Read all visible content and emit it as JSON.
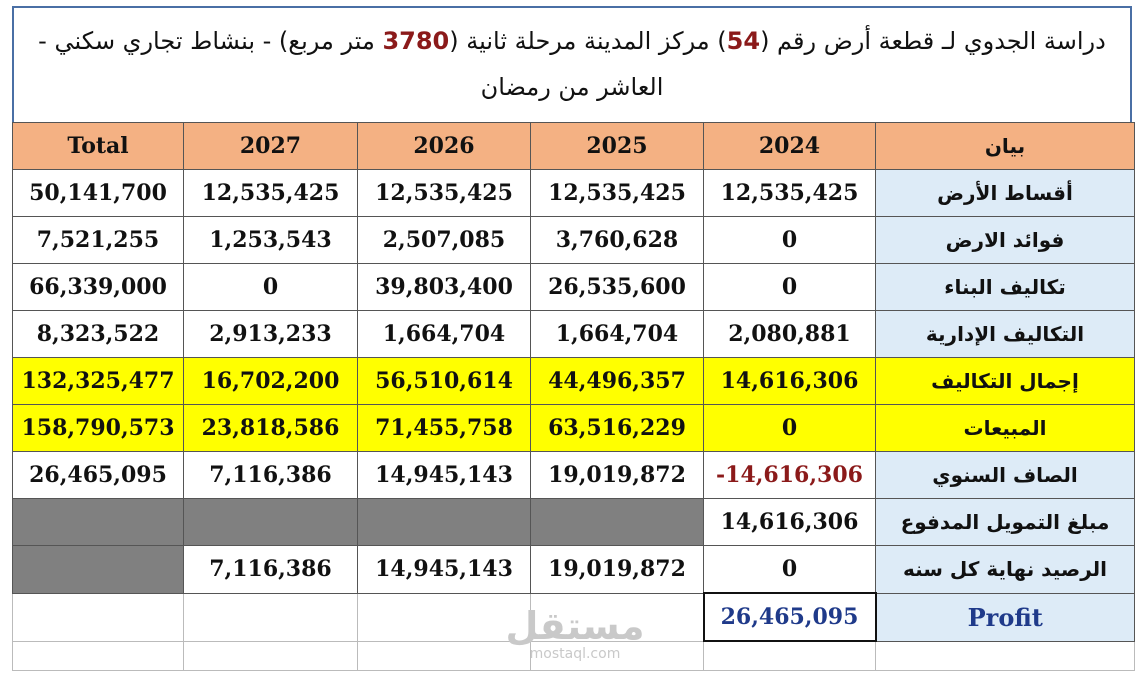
{
  "title": {
    "part1": "دراسة الجدوي لـ قطعة أرض رقم (",
    "plot_number": "54",
    "part2": ")  مركز المدينة مرحلة ثانية (",
    "area": "3780",
    "part3": " متر مربع) - بنشاط تجاري سكني -",
    "line2": "العاشر من رمضان"
  },
  "table": {
    "headers": [
      "بيان",
      "2024",
      "2025",
      "2026",
      "2027",
      "Total"
    ],
    "rows": [
      {
        "label": "أقساط الأرض",
        "v2024": "12,535,425",
        "v2025": "12,535,425",
        "v2026": "12,535,425",
        "v2027": "12,535,425",
        "total": "50,141,700"
      },
      {
        "label": "فوائد الارض",
        "v2024": "0",
        "v2025": "3,760,628",
        "v2026": "2,507,085",
        "v2027": "1,253,543",
        "total": "7,521,255"
      },
      {
        "label": "تكاليف البناء",
        "v2024": "0",
        "v2025": "26,535,600",
        "v2026": "39,803,400",
        "v2027": "0",
        "total": "66,339,000"
      },
      {
        "label": "التكاليف الإدارية",
        "v2024": "2,080,881",
        "v2025": "1,664,704",
        "v2026": "1,664,704",
        "v2027": "2,913,233",
        "total": "8,323,522"
      },
      {
        "label": "إجمال التكاليف",
        "v2024": "14,616,306",
        "v2025": "44,496,357",
        "v2026": "56,510,614",
        "v2027": "16,702,200",
        "total": "132,325,477"
      },
      {
        "label": "المبيعات",
        "v2024": "0",
        "v2025": "63,516,229",
        "v2026": "71,455,758",
        "v2027": "23,818,586",
        "total": "158,790,573"
      },
      {
        "label": "الصاف السنوي",
        "v2024": "-14,616,306",
        "v2025": "19,019,872",
        "v2026": "14,945,143",
        "v2027": "7,116,386",
        "total": "26,465,095"
      },
      {
        "label": "مبلغ التمويل المدفوع",
        "v2024": "14,616,306"
      },
      {
        "label": "الرصيد نهاية كل سنه",
        "v2024": "0",
        "v2025": "19,019,872",
        "v2026": "14,945,143",
        "v2027": "7,116,386"
      },
      {
        "label": "Profit",
        "v2024": "26,465,095"
      }
    ]
  },
  "watermark": {
    "line1": "مستقل",
    "line2": "mostaql.com"
  },
  "colors": {
    "header": "#f4b183",
    "label": "#ddebf7",
    "highlight": "#ffff00",
    "gray": "#808080",
    "negative": "#8b1a1a",
    "profit": "#1f3a8a"
  }
}
